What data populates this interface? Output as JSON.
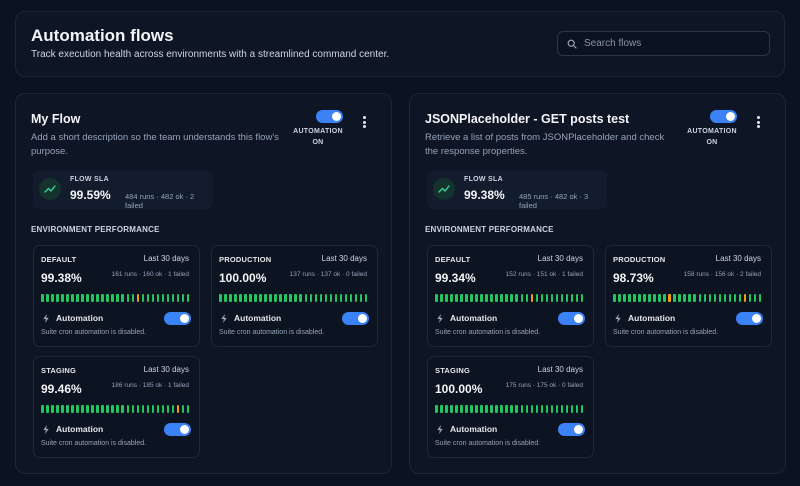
{
  "header": {
    "title": "Automation flows",
    "subtitle": "Track execution health across environments with a streamlined command center.",
    "search_placeholder": "Search flows"
  },
  "labels": {
    "automation_on": "AUTOMATION ON",
    "flow_sla": "FLOW SLA",
    "env_performance": "ENVIRONMENT PERFORMANCE",
    "automation": "Automation"
  },
  "colors": {
    "accent": "#3b82f6",
    "ok": "#22c55e",
    "warn": "#f59e0b"
  },
  "flows": [
    {
      "name": "My Flow",
      "description": "Add a short description so the team understands this flow's purpose.",
      "automation_on": true,
      "sla": {
        "percent": "99.59%",
        "stats": "484 runs · 482 ok · 2 failed"
      },
      "environments": [
        {
          "name": "DEFAULT",
          "period": "Last 30 days",
          "percent": "99.38%",
          "stats": "161 runs · 160 ok · 1 failed",
          "warn_bars": [
            19
          ],
          "automation": true,
          "note": "Suite cron automation is disabled."
        },
        {
          "name": "PRODUCTION",
          "period": "Last 30 days",
          "percent": "100.00%",
          "stats": "137 runs · 137 ok · 0 failed",
          "warn_bars": [],
          "automation": true,
          "note": "Suite cron automation is disabled."
        },
        {
          "name": "STAGING",
          "period": "Last 30 days",
          "percent": "99.46%",
          "stats": "186 runs · 185 ok · 1 failed",
          "warn_bars": [
            27
          ],
          "automation": true,
          "note": "Suite cron automation is disabled."
        }
      ]
    },
    {
      "name": "JSONPlaceholder - GET posts test",
      "description": "Retrieve a list of posts from JSONPlaceholder and check the response properties.",
      "automation_on": true,
      "sla": {
        "percent": "99.38%",
        "stats": "485 runs · 482 ok · 3 failed"
      },
      "environments": [
        {
          "name": "DEFAULT",
          "period": "Last 30 days",
          "percent": "99.34%",
          "stats": "152 runs · 151 ok · 1 failed",
          "warn_bars": [
            19
          ],
          "automation": true,
          "note": "Suite cron automation is disabled."
        },
        {
          "name": "PRODUCTION",
          "period": "Last 30 days",
          "percent": "98.73%",
          "stats": "158 runs · 156 ok · 2 failed",
          "warn_bars": [
            11,
            26
          ],
          "automation": true,
          "note": "Suite cron automation is disabled."
        },
        {
          "name": "STAGING",
          "period": "Last 30 days",
          "percent": "100.00%",
          "stats": "175 runs · 175 ok · 0 failed",
          "warn_bars": [],
          "automation": true,
          "note": "Suite cron automation is disabled."
        }
      ]
    }
  ]
}
